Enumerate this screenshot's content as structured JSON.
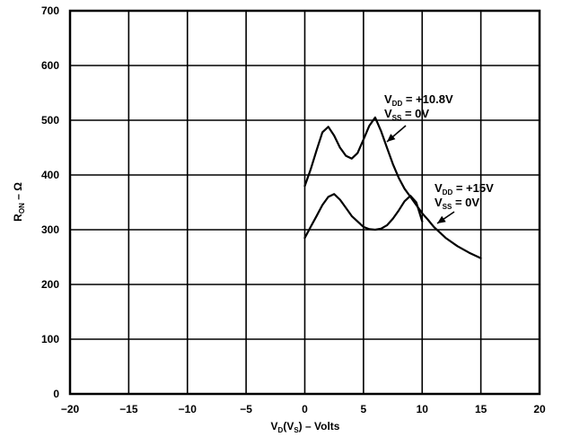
{
  "chart_data": {
    "type": "line",
    "xlim": [
      -20,
      20
    ],
    "ylim": [
      0,
      700
    ],
    "x_ticks": [
      "−20",
      "−15",
      "−10",
      "−5",
      "0",
      "5",
      "10",
      "15",
      "20"
    ],
    "y_ticks": [
      "0",
      "100",
      "200",
      "300",
      "400",
      "500",
      "600",
      "700"
    ],
    "grid": true,
    "xlabel": {
      "main": "V",
      "sub1": "D",
      "mid": "(V",
      "sub2": "S",
      "end": ") – Volts"
    },
    "ylabel": {
      "main": "R",
      "sub": "ON",
      "end": " – Ω"
    },
    "series": [
      {
        "x": [
          0,
          0.5,
          1,
          1.5,
          2,
          2.5,
          3,
          3.5,
          4,
          4.5,
          5,
          5.5,
          6,
          6.5,
          7,
          7.5,
          8,
          8.5,
          9,
          9.5,
          10,
          10.5,
          11,
          11.5,
          12,
          13,
          14,
          15
        ],
        "y": [
          380,
          410,
          445,
          478,
          488,
          472,
          450,
          435,
          430,
          440,
          465,
          490,
          505,
          480,
          450,
          420,
          395,
          375,
          360,
          345,
          330,
          318,
          305,
          295,
          285,
          270,
          258,
          248
        ],
        "annotation": {
          "line1": {
            "main": "V",
            "sub": "DD",
            "value": " =  +10.8V"
          },
          "line2": {
            "main": "V",
            "sub": "SS",
            "value": " = 0V"
          }
        }
      },
      {
        "x": [
          0,
          0.5,
          1,
          1.5,
          2,
          2.5,
          3,
          3.5,
          4,
          4.5,
          5,
          5.5,
          6,
          6.5,
          7,
          7.5,
          8,
          8.5,
          9,
          9.5,
          10
        ],
        "y": [
          285,
          305,
          325,
          345,
          360,
          365,
          355,
          340,
          325,
          315,
          305,
          301,
          300,
          302,
          308,
          320,
          335,
          352,
          362,
          350,
          315
        ],
        "annotation": {
          "line1": {
            "main": "V",
            "sub": "DD",
            "value": " =  +15V"
          },
          "line2": {
            "main": "V",
            "sub": "SS",
            "value": " = 0V"
          }
        }
      }
    ]
  }
}
